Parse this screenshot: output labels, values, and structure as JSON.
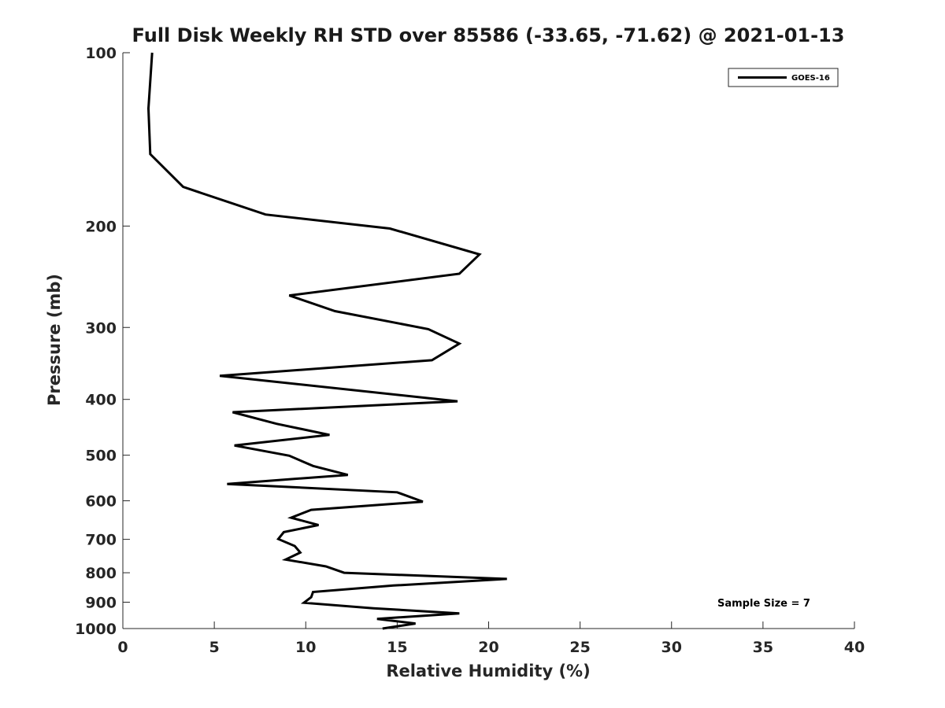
{
  "chart_data": {
    "type": "line",
    "title": "Full Disk Weekly RH STD over 85586 (-33.65, -71.62) @ 2021-01-13",
    "xlabel": "Relative Humidity (%)",
    "ylabel": "Pressure (mb)",
    "xlim": [
      0,
      40
    ],
    "ylim": [
      100,
      1000
    ],
    "y_scale": "log",
    "y_reversed": true,
    "x_ticks": [
      0,
      5,
      10,
      15,
      20,
      25,
      30,
      35,
      40
    ],
    "y_ticks": [
      100,
      200,
      300,
      400,
      500,
      600,
      700,
      800,
      900,
      1000
    ],
    "grid": false,
    "legend_position": "top-right",
    "annotation": "Sample Size = 7",
    "series": [
      {
        "name": "GOES-16",
        "color": "#000000",
        "points": [
          [
            1.6,
            100
          ],
          [
            1.4,
            125
          ],
          [
            1.5,
            150
          ],
          [
            3.3,
            171
          ],
          [
            7.8,
            191
          ],
          [
            14.6,
            202
          ],
          [
            19.5,
            224
          ],
          [
            18.4,
            242
          ],
          [
            9.1,
            264
          ],
          [
            11.6,
            281
          ],
          [
            16.7,
            302
          ],
          [
            18.4,
            320
          ],
          [
            16.9,
            342
          ],
          [
            5.3,
            364
          ],
          [
            18.3,
            403
          ],
          [
            6.0,
            421
          ],
          [
            8.4,
            441
          ],
          [
            11.3,
            461
          ],
          [
            6.1,
            481
          ],
          [
            9.1,
            501
          ],
          [
            10.4,
            522
          ],
          [
            12.3,
            541
          ],
          [
            5.7,
            561
          ],
          [
            15.0,
            580
          ],
          [
            16.4,
            602
          ],
          [
            10.3,
            622
          ],
          [
            9.2,
            642
          ],
          [
            10.7,
            661
          ],
          [
            8.8,
            680
          ],
          [
            8.5,
            699
          ],
          [
            9.4,
            719
          ],
          [
            9.7,
            738
          ],
          [
            8.9,
            759
          ],
          [
            11.1,
            780
          ],
          [
            12.1,
            800
          ],
          [
            21.0,
            820
          ],
          [
            14.8,
            842
          ],
          [
            10.4,
            864
          ],
          [
            10.3,
            882
          ],
          [
            9.9,
            902
          ],
          [
            13.7,
            922
          ],
          [
            18.4,
            941
          ],
          [
            13.9,
            962
          ],
          [
            16.0,
            980
          ],
          [
            14.2,
            1000
          ]
        ]
      }
    ]
  }
}
